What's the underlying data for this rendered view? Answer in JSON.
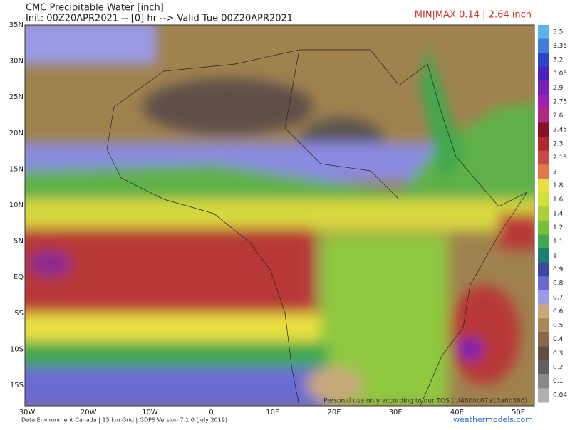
{
  "header": {
    "title": "CMC Precipitable Water [inch]",
    "subtitle": "Init: 00Z20APR2021 -- [0] hr --> Valid Tue 00Z20APR2021",
    "minmax": "MIN|MAX 0.14 | 2.64 inch"
  },
  "lat_labels": [
    "35N",
    "30N",
    "25N",
    "20N",
    "15N",
    "10N",
    "5N",
    "EQ",
    "5S",
    "10S",
    "15S"
  ],
  "lon_labels": [
    "30W",
    "20W",
    "10W",
    "0",
    "10E",
    "20E",
    "30E",
    "40E",
    "50E"
  ],
  "legend": [
    {
      "label": "3.5",
      "color": "#5ab4e8"
    },
    {
      "label": "3.35",
      "color": "#3f7fd9"
    },
    {
      "label": "3.2",
      "color": "#2b45c8"
    },
    {
      "label": "3.05",
      "color": "#4b1fc0"
    },
    {
      "label": "2.9",
      "color": "#7a1fb8"
    },
    {
      "label": "2.75",
      "color": "#a020b0"
    },
    {
      "label": "2.6",
      "color": "#b22880"
    },
    {
      "label": "2.45",
      "color": "#8a0f2a"
    },
    {
      "label": "2.3",
      "color": "#b02a2a"
    },
    {
      "label": "2.15",
      "color": "#c84a4a"
    },
    {
      "label": "2",
      "color": "#e0784a"
    },
    {
      "label": "1.8",
      "color": "#e8e040"
    },
    {
      "label": "1.6",
      "color": "#d4e03a"
    },
    {
      "label": "1.4",
      "color": "#a8d038"
    },
    {
      "label": "1.2",
      "color": "#78c038"
    },
    {
      "label": "1.1",
      "color": "#40a850"
    },
    {
      "label": "1",
      "color": "#208070"
    },
    {
      "label": "0.9",
      "color": "#3a4aa0"
    },
    {
      "label": "0.8",
      "color": "#6a6ad0"
    },
    {
      "label": "0.7",
      "color": "#9a9ae8"
    },
    {
      "label": "0.6",
      "color": "#c8a878"
    },
    {
      "label": "0.5",
      "color": "#a88858"
    },
    {
      "label": "0.4",
      "color": "#886848"
    },
    {
      "label": "0.3",
      "color": "#605040"
    },
    {
      "label": "0.2",
      "color": "#606060"
    },
    {
      "label": "0.1",
      "color": "#888888"
    },
    {
      "label": "0.04",
      "color": "#b0b0b0"
    }
  ],
  "footer": {
    "credit": "Data Environment Canada | 15 km Grid | GDPS Version 7.1.0 (July 2019)",
    "site": "weathermodels.com",
    "watermark": "Personal use only according to our TOS (pf4800c67a13a6b386)"
  }
}
